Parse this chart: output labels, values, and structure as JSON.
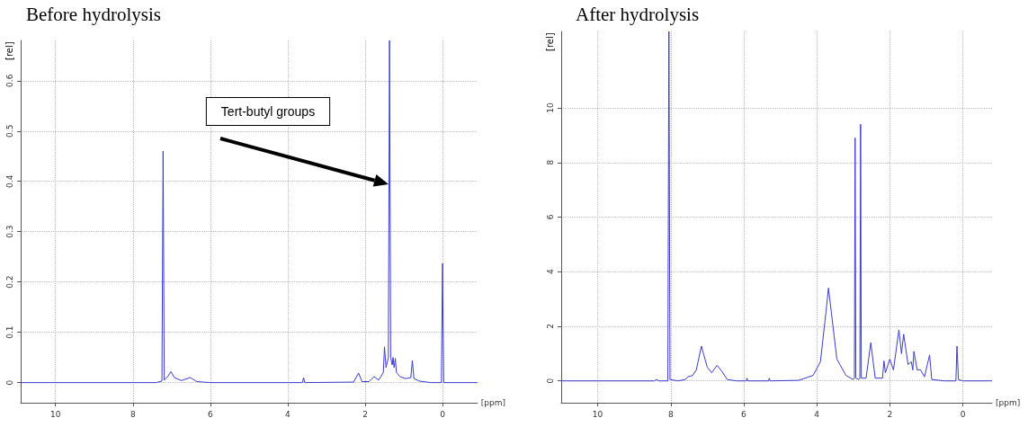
{
  "chart_data": [
    {
      "type": "line",
      "title": "Before hydrolysis",
      "xlabel": "[ppm]",
      "ylabel": "[rel]",
      "xlim": [
        10.9,
        -0.9
      ],
      "xticks": [
        10,
        8,
        6,
        4,
        2,
        0
      ],
      "ylim": [
        -0.04,
        0.68
      ],
      "yticks": [
        0.0,
        0.1,
        0.2,
        0.3,
        0.4,
        0.5,
        0.6
      ],
      "grid": true,
      "marker": "none",
      "line_style": "solid",
      "annotations": [
        "Tert-butyl groups"
      ],
      "series": [
        {
          "color": "#3a3acc",
          "x": [
            10.9,
            7.4,
            7.25,
            7.22,
            7.19,
            7.1,
            7.02,
            6.93,
            6.75,
            6.52,
            6.35,
            6.0,
            3.62,
            3.59,
            3.56,
            2.3,
            2.17,
            2.08,
            1.9,
            1.77,
            1.65,
            1.53,
            1.5,
            1.46,
            1.4,
            1.37,
            1.34,
            1.3,
            1.28,
            1.25,
            1.22,
            1.19,
            1.1,
            0.95,
            0.82,
            0.78,
            0.74,
            0.6,
            0.3,
            0.03,
            0.0,
            -0.03,
            -0.9
          ],
          "values": [
            0,
            0,
            0.003,
            0.46,
            0.005,
            0.012,
            0.022,
            0.01,
            0.004,
            0.01,
            0.002,
            0,
            0,
            0.01,
            0,
            0.001,
            0.019,
            0.002,
            0.002,
            0.012,
            0.005,
            0.02,
            0.071,
            0.03,
            0.05,
            0.68,
            0.05,
            0.035,
            0.05,
            0.03,
            0.048,
            0.02,
            0.012,
            0.008,
            0.01,
            0.044,
            0.008,
            0.003,
            0,
            0,
            0.237,
            0,
            0
          ]
        }
      ]
    },
    {
      "type": "line",
      "title": "After hydrolysis",
      "xlabel": "[ppm]",
      "ylabel": "[rel]",
      "xlim": [
        11.0,
        -0.8
      ],
      "xticks": [
        10,
        8,
        6,
        4,
        2,
        0
      ],
      "ylim": [
        -0.8,
        12.8
      ],
      "yticks": [
        0,
        2,
        4,
        6,
        8,
        10
      ],
      "grid": true,
      "marker": "none",
      "line_style": "solid",
      "series": [
        {
          "color": "#3a3acc",
          "x": [
            11.0,
            8.45,
            8.39,
            8.33,
            8.08,
            8.05,
            8.02,
            7.8,
            7.6,
            7.53,
            7.4,
            7.3,
            7.16,
            7.0,
            6.88,
            6.73,
            6.6,
            6.45,
            6.2,
            5.93,
            5.91,
            5.89,
            5.32,
            5.3,
            5.28,
            4.5,
            4.1,
            3.9,
            3.75,
            3.68,
            3.6,
            3.45,
            3.2,
            3.0,
            2.97,
            2.95,
            2.93,
            2.85,
            2.82,
            2.8,
            2.78,
            2.65,
            2.52,
            2.4,
            2.2,
            2.16,
            2.12,
            2.0,
            1.9,
            1.75,
            1.68,
            1.62,
            1.5,
            1.41,
            1.37,
            1.34,
            1.25,
            1.16,
            1.05,
            0.91,
            0.85,
            0.5,
            0.19,
            0.16,
            0.12,
            0.0,
            -0.8
          ],
          "values": [
            0,
            0,
            0.05,
            0,
            0,
            12.8,
            0.05,
            0,
            0.05,
            0.15,
            0.2,
            0.4,
            1.27,
            0.5,
            0.3,
            0.57,
            0.35,
            0.05,
            0,
            0,
            0.1,
            0,
            0,
            0.1,
            0,
            0.02,
            0.2,
            0.7,
            2.5,
            3.4,
            2.5,
            0.8,
            0.2,
            0.05,
            0.1,
            8.9,
            0.1,
            0.05,
            0.1,
            9.4,
            0.1,
            0.1,
            1.4,
            0.1,
            0.1,
            0.73,
            0.3,
            0.8,
            0.4,
            1.87,
            1.0,
            1.71,
            0.6,
            0.7,
            0.4,
            1.08,
            0.4,
            0.41,
            0.15,
            0.95,
            0.05,
            0,
            0,
            1.27,
            0.05,
            0,
            0
          ]
        }
      ]
    }
  ]
}
